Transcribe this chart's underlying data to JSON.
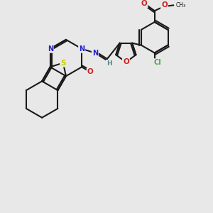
{
  "bg_color": "#e8e8e8",
  "bond_color": "#1a1a1a",
  "atom_colors": {
    "S": "#cccc00",
    "N": "#2222cc",
    "O": "#cc2222",
    "Cl": "#44aa44",
    "H": "#558888"
  },
  "figsize": [
    3.0,
    3.0
  ],
  "dpi": 100
}
